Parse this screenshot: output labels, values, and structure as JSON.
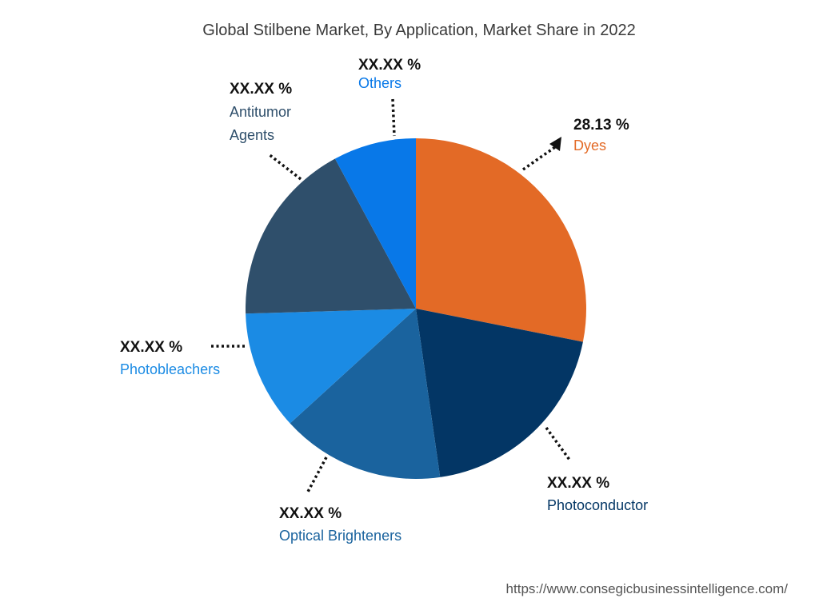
{
  "chart_data": {
    "type": "pie",
    "title": "Global Stilbene Market, By Application, Market Share in 2022",
    "slices": [
      {
        "name": "Dyes",
        "value_label": "28.13 %",
        "share": 28.13,
        "color": "#E36A26",
        "label_color": "#E36A26"
      },
      {
        "name": "Photoconductor",
        "value_label": "XX.XX %",
        "share": 19.6,
        "color": "#033665",
        "label_color": "#033665"
      },
      {
        "name": "Optical Brighteners",
        "value_label": "XX.XX %",
        "share": 15.5,
        "color": "#1A639E",
        "label_color": "#1A639E"
      },
      {
        "name": "Photobleachers",
        "value_label": "XX.XX %",
        "share": 11.3,
        "color": "#1B8BE4",
        "label_color": "#1B8BE4"
      },
      {
        "name": "Antitumor Agents",
        "value_label": "XX.XX %",
        "share": 17.6,
        "color": "#2F4F6B",
        "label_color": "#2F4F6B"
      },
      {
        "name": "Others",
        "value_label": "XX.XX %",
        "share": 7.87,
        "color": "#0878E8",
        "label_color": "#0878E8"
      }
    ]
  },
  "source_url": "https://www.consegicbusinessintelligence.com/"
}
